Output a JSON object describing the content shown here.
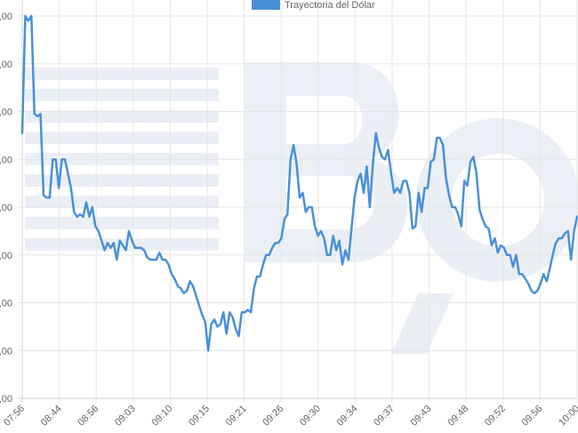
{
  "chart_data": {
    "type": "line",
    "title": "",
    "xlabel": "",
    "ylabel": "",
    "legend": {
      "position": "top",
      "label": "Trayectoria del Dólar"
    },
    "grid": true,
    "ylim": [
      0,
      8
    ],
    "y_tick_labels": [
      ",00",
      ",00",
      ",00",
      ",00",
      ",00",
      ",00",
      ",00",
      ",00",
      ",00"
    ],
    "x_tick_labels": [
      "07:56",
      "08:44",
      "08:56",
      "09:03",
      "09:10",
      "09:15",
      "09:21",
      "09:26",
      "09:30",
      "09:34",
      "09:37",
      "09:43",
      "09:48",
      "09:52",
      "09:56",
      "10:00"
    ],
    "series": [
      {
        "name": "Trayectoria del Dólar",
        "color": "#4a90d9",
        "values": [
          5.55,
          8.0,
          7.9,
          8.0,
          5.95,
          5.9,
          5.95,
          4.25,
          4.2,
          4.2,
          5.0,
          5.0,
          4.4,
          5.0,
          5.0,
          4.7,
          4.4,
          3.9,
          3.8,
          3.85,
          3.8,
          4.1,
          3.8,
          4.0,
          3.6,
          3.5,
          3.3,
          3.1,
          3.25,
          3.15,
          3.25,
          2.9,
          3.3,
          3.2,
          3.1,
          3.5,
          3.3,
          3.15,
          3.15,
          3.15,
          3.1,
          2.95,
          2.9,
          2.9,
          2.9,
          3.05,
          2.9,
          2.9,
          2.8,
          2.6,
          2.5,
          2.35,
          2.3,
          2.2,
          2.25,
          2.45,
          2.35,
          2.15,
          1.95,
          1.75,
          1.6,
          1.0,
          1.55,
          1.65,
          1.5,
          1.55,
          1.8,
          1.35,
          1.8,
          1.7,
          1.45,
          1.3,
          1.8,
          1.8,
          1.85,
          1.8,
          2.3,
          2.55,
          2.55,
          2.8,
          3.0,
          3.0,
          3.15,
          3.25,
          3.25,
          3.35,
          3.75,
          3.85,
          5.0,
          5.3,
          4.9,
          4.2,
          4.3,
          3.9,
          4.0,
          4.0,
          3.6,
          3.4,
          3.5,
          3.35,
          3.0,
          3.0,
          3.4,
          3.1,
          3.3,
          2.8,
          3.1,
          2.9,
          3.55,
          4.2,
          4.55,
          4.7,
          4.3,
          4.85,
          4.0,
          4.9,
          5.55,
          5.25,
          5.05,
          5.0,
          5.2,
          4.7,
          4.3,
          4.4,
          4.3,
          4.55,
          4.55,
          4.3,
          3.55,
          3.6,
          4.3,
          3.9,
          4.4,
          4.4,
          4.95,
          5.0,
          5.45,
          5.45,
          5.3,
          4.6,
          4.25,
          4.0,
          4.0,
          3.85,
          3.6,
          4.55,
          4.45,
          4.95,
          5.05,
          4.7,
          3.95,
          3.75,
          3.6,
          3.55,
          3.2,
          3.35,
          3.05,
          3.2,
          3.15,
          3.0,
          3.0,
          2.75,
          3.0,
          2.6,
          2.6,
          2.5,
          2.4,
          2.25,
          2.2,
          2.25,
          2.4,
          2.6,
          2.45,
          2.7,
          3.0,
          3.25,
          3.35,
          3.35,
          3.45,
          3.5,
          2.9,
          3.5,
          3.8
        ]
      }
    ]
  }
}
